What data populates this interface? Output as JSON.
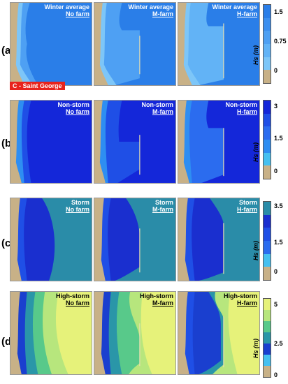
{
  "rows": [
    {
      "label": "(a)",
      "panels": [
        {
          "line1": "Winter average",
          "line2": "No farm"
        },
        {
          "line1": "Winter average",
          "line2": "M-farm"
        },
        {
          "line1": "Winter average",
          "line2": "H-farm"
        }
      ],
      "colorbar": {
        "unit": "Hs (m)",
        "ticks": [
          "1.5",
          "0.75",
          "0"
        ],
        "colors": [
          "#2a7ee8",
          "#3c8fef",
          "#4ea0f3",
          "#62b3f6",
          "#7dc6f8",
          "#c8b187"
        ]
      }
    },
    {
      "label": "(b)",
      "panels": [
        {
          "line1": "Non-storm",
          "line2": "No farm"
        },
        {
          "line1": "Non-storm",
          "line2": "M-farm"
        },
        {
          "line1": "Non-storm",
          "line2": "H-farm"
        }
      ],
      "colorbar": {
        "unit": "Hs (m)",
        "ticks": [
          "3",
          "1.5",
          "0"
        ],
        "colors": [
          "#1427d9",
          "#1f4fe6",
          "#2b6cef",
          "#2e8ef2",
          "#46c0f0",
          "#c8b187"
        ]
      }
    },
    {
      "label": "(c)",
      "panels": [
        {
          "line1": "Storm",
          "line2": "No farm"
        },
        {
          "line1": "Storm",
          "line2": "M-farm"
        },
        {
          "line1": "Storm",
          "line2": "H-farm"
        }
      ],
      "colorbar": {
        "unit": "Hs (m)",
        "ticks": [
          "3.5",
          "1.5",
          "0"
        ],
        "colors": [
          "#2a8ca8",
          "#1a2fcf",
          "#1f4fe6",
          "#2b6cef",
          "#46c0f0",
          "#c8b187"
        ]
      }
    },
    {
      "label": "(d)",
      "panels": [
        {
          "line1": "High-storm",
          "line2": "No farm"
        },
        {
          "line1": "High-storm",
          "line2": "M-farm"
        },
        {
          "line1": "High-storm",
          "line2": "H-farm"
        }
      ],
      "colorbar": {
        "unit": "Hs (m)",
        "ticks": [
          "5",
          "2.5",
          "0"
        ],
        "colors": [
          "#e6f27a",
          "#b7e67d",
          "#58c98a",
          "#2a96a8",
          "#1a3fcf",
          "#46c0f0",
          "#c8b187"
        ]
      }
    }
  ],
  "location_badge": "C - Saint George"
}
